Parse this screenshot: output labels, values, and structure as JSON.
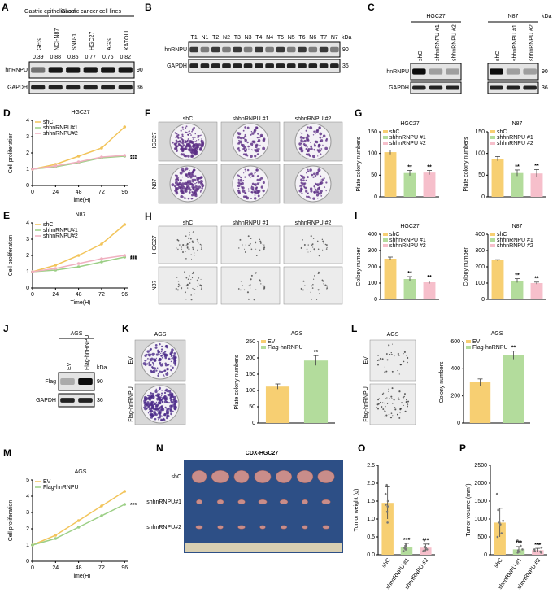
{
  "blots": [
    {
      "letter": "A",
      "groups": [
        {
          "label": "Gastric epithelial cell"
        },
        {
          "label": "Gastric cancer cell lines"
        }
      ],
      "lanes": [
        "GES",
        "NCI-N87",
        "SNU-1",
        "HGC27",
        "AGS",
        "KATOIII"
      ],
      "values": [
        0.39,
        0.88,
        0.85,
        0.77,
        0.76,
        0.82
      ],
      "rows": [
        {
          "name": "hnRNPU",
          "kda": 90
        },
        {
          "name": "GAPDH",
          "kda": 36
        }
      ]
    },
    {
      "letter": "B",
      "lanes": [
        "T1",
        "N1",
        "T2",
        "N2",
        "T3",
        "N3",
        "T4",
        "N4",
        "T5",
        "N5",
        "T6",
        "N6",
        "T7",
        "N7"
      ],
      "kda_label": "kDa",
      "rows": [
        {
          "name": "hnRNPU",
          "kda": 90
        },
        {
          "name": "GAPDH",
          "kda": 36
        }
      ]
    },
    {
      "letter": "C",
      "kda_label": "kDa",
      "groups": [
        {
          "label": "HGC27",
          "lanes": [
            "shC",
            "shhnRNPU #1",
            "shhnRNPU #2"
          ]
        },
        {
          "label": "N87",
          "lanes": [
            "shC",
            "shhnRNPU #1",
            "shhnRNPU #2"
          ]
        }
      ],
      "rows": [
        {
          "name": "hnRNPU",
          "kda": 90
        },
        {
          "name": "GAPDH",
          "kda": 36
        }
      ]
    },
    {
      "letter": "J",
      "title": "AGS",
      "kda_label": "kDa",
      "lanes": [
        "EV",
        "Flag-hnRNPU"
      ],
      "rows": [
        {
          "name": "Flag",
          "kda": 90
        },
        {
          "name": "GAPDH",
          "kda": 36
        }
      ]
    }
  ],
  "images": [
    {
      "letter": "F",
      "columns": [
        "shC",
        "shhnRNPU #1",
        "shhnRNPU #2"
      ],
      "rows": [
        "HGC27",
        "N87"
      ]
    },
    {
      "letter": "H",
      "columns": [
        "shC",
        "shhnRNPU #1",
        "shhnRNPU #2"
      ],
      "rows": [
        "HGC27",
        "N87"
      ]
    },
    {
      "letter": "K",
      "title": "AGS",
      "rows": [
        "EV",
        "Flag-hnRNPU"
      ]
    },
    {
      "letter": "L",
      "title": "AGS",
      "rows": [
        "EV",
        "Flag-hnRNPU"
      ]
    },
    {
      "letter": "N",
      "title": "CDX-HGC27",
      "rows": [
        "shC",
        "shhnRNPU#1",
        "shhnRNPU#2"
      ]
    }
  ],
  "chart_data": [
    {
      "type": "line",
      "letter": "D",
      "title": "HGC27",
      "x_label": "Time(H)",
      "y_label": "Cell proliferation",
      "x": [
        0,
        24,
        48,
        72,
        96
      ],
      "xlim": [
        0,
        100
      ],
      "xticks": [
        0,
        24,
        48,
        72,
        96
      ],
      "ylim": [
        0,
        4
      ],
      "yticks": [
        0,
        1,
        2,
        3,
        4
      ],
      "series": [
        {
          "name": "shC",
          "color": "#f2c45a",
          "values": [
            1,
            1.3,
            1.8,
            2.3,
            3.6
          ]
        },
        {
          "name": "shhnRNPU#1",
          "color": "#9ccf86",
          "values": [
            1,
            1.15,
            1.4,
            1.7,
            1.8
          ],
          "annotation": "***"
        },
        {
          "name": "shhnRNPU#2",
          "color": "#f0b0c0",
          "values": [
            1,
            1.2,
            1.45,
            1.75,
            1.85
          ],
          "annotation": "***"
        }
      ]
    },
    {
      "type": "line",
      "letter": "E",
      "title": "N87",
      "x_label": "Time(H)",
      "y_label": "Cell proliferation",
      "x": [
        0,
        24,
        48,
        72,
        96
      ],
      "xlim": [
        0,
        100
      ],
      "xticks": [
        0,
        24,
        48,
        72,
        96
      ],
      "ylim": [
        0,
        4
      ],
      "yticks": [
        0,
        1,
        2,
        3,
        4
      ],
      "series": [
        {
          "name": "shC",
          "color": "#f2c45a",
          "values": [
            1,
            1.4,
            2.0,
            2.7,
            3.9
          ]
        },
        {
          "name": "shhnRNPU#1",
          "color": "#9ccf86",
          "values": [
            1,
            1.1,
            1.3,
            1.6,
            1.9
          ],
          "annotation": "***"
        },
        {
          "name": "shhnRNPU#2",
          "color": "#f0b0c0",
          "values": [
            1,
            1.2,
            1.5,
            1.8,
            2.0
          ],
          "annotation": "***"
        }
      ]
    },
    {
      "type": "bar",
      "letter": "G",
      "title": "HGC27",
      "y_label": "Plate colony numbers",
      "categories": [
        null
      ],
      "ylim": [
        0,
        150
      ],
      "yticks": [
        0,
        50,
        100,
        150
      ],
      "series": [
        {
          "name": "shC",
          "color": "#f7cf72",
          "values": [
            103
          ],
          "errors": [
            5
          ]
        },
        {
          "name": "shhnRNPU #1",
          "color": "#b3dc9c",
          "values": [
            55
          ],
          "errors": [
            6
          ],
          "annotation": "**"
        },
        {
          "name": "shhnRNPU #2",
          "color": "#f6bfcb",
          "values": [
            56
          ],
          "errors": [
            5
          ],
          "annotation": "**"
        }
      ]
    },
    {
      "type": "bar",
      "title": "N87",
      "y_label": "Plate colony numbers",
      "categories": [
        null
      ],
      "ylim": [
        0,
        150
      ],
      "yticks": [
        0,
        50,
        100,
        150
      ],
      "series": [
        {
          "name": "shC",
          "color": "#f7cf72",
          "values": [
            88
          ],
          "errors": [
            5
          ]
        },
        {
          "name": "shhnRNPU #1",
          "color": "#b3dc9c",
          "values": [
            55
          ],
          "errors": [
            7
          ],
          "annotation": "**"
        },
        {
          "name": "shhnRNPU #2",
          "color": "#f6bfcb",
          "values": [
            54
          ],
          "errors": [
            9
          ],
          "annotation": "**"
        }
      ]
    },
    {
      "type": "bar",
      "letter": "I",
      "title": "HGC27",
      "y_label": "Colony number",
      "categories": [
        null
      ],
      "ylim": [
        0,
        400
      ],
      "yticks": [
        0,
        100,
        200,
        300,
        400
      ],
      "series": [
        {
          "name": "shC",
          "color": "#f7cf72",
          "values": [
            250
          ],
          "errors": [
            10
          ]
        },
        {
          "name": "shhnRNPU #1",
          "color": "#b3dc9c",
          "values": [
            125
          ],
          "errors": [
            15
          ],
          "annotation": "**"
        },
        {
          "name": "shhnRNPU #2",
          "color": "#f6bfcb",
          "values": [
            105
          ],
          "errors": [
            8
          ],
          "annotation": "**"
        }
      ]
    },
    {
      "type": "bar",
      "title": "N87",
      "y_label": "Colony number",
      "categories": [
        null
      ],
      "ylim": [
        0,
        400
      ],
      "yticks": [
        0,
        100,
        200,
        300,
        400
      ],
      "series": [
        {
          "name": "shC",
          "color": "#f7cf72",
          "values": [
            240
          ],
          "errors": [
            4
          ]
        },
        {
          "name": "shhnRNPU #1",
          "color": "#b3dc9c",
          "values": [
            115
          ],
          "errors": [
            12
          ],
          "annotation": "**"
        },
        {
          "name": "shhnRNPU #2",
          "color": "#f6bfcb",
          "values": [
            100
          ],
          "errors": [
            6
          ],
          "annotation": "**"
        }
      ]
    },
    {
      "type": "bar",
      "title": "AGS",
      "y_label": "Plate colony numbers",
      "categories": [
        null
      ],
      "ylim": [
        0,
        250
      ],
      "yticks": [
        0,
        50,
        100,
        150,
        200,
        250
      ],
      "series": [
        {
          "name": "EV",
          "color": "#f7cf72",
          "values": [
            112
          ],
          "errors": [
            8
          ]
        },
        {
          "name": "Flag-hnRNPU",
          "color": "#b3dc9c",
          "values": [
            192
          ],
          "errors": [
            15
          ],
          "annotation": "**"
        }
      ]
    },
    {
      "type": "bar",
      "title": "AGS",
      "y_label": "Colony numbers",
      "categories": [
        null
      ],
      "ylim": [
        0,
        600
      ],
      "yticks": [
        0,
        200,
        400,
        600
      ],
      "series": [
        {
          "name": "EV",
          "color": "#f7cf72",
          "values": [
            300
          ],
          "errors": [
            25
          ]
        },
        {
          "name": "Flag-hnRNPU",
          "color": "#b3dc9c",
          "values": [
            500
          ],
          "errors": [
            30
          ],
          "annotation": "**"
        }
      ]
    },
    {
      "type": "line",
      "letter": "M",
      "title": "AGS",
      "x_label": "Time(H)",
      "y_label": "Cell proliferation",
      "x": [
        0,
        24,
        48,
        72,
        96
      ],
      "xlim": [
        0,
        100
      ],
      "xticks": [
        0,
        24,
        48,
        72,
        96
      ],
      "ylim": [
        0,
        5
      ],
      "yticks": [
        0,
        1,
        2,
        3,
        4,
        5
      ],
      "series": [
        {
          "name": "EV",
          "color": "#f2c45a",
          "values": [
            1,
            1.6,
            2.5,
            3.4,
            4.3
          ]
        },
        {
          "name": "Flag-hnRNPU",
          "color": "#9ccf86",
          "values": [
            1,
            1.4,
            2.1,
            2.8,
            3.5
          ],
          "annotation": "***"
        }
      ]
    },
    {
      "type": "bar",
      "letter": "O",
      "y_label": "Tumor weight (g)",
      "categories": [
        "shC",
        "shhnRNPU #1",
        "shhnRNPU #2"
      ],
      "values": [
        1.45,
        0.22,
        0.2
      ],
      "errors": [
        0.45,
        0.1,
        0.1
      ],
      "colors": [
        "#f7cf72",
        "#b3dc9c",
        "#f6bfcb"
      ],
      "annotations": [
        null,
        "***",
        "***"
      ],
      "points": [
        [
          1.95,
          1.7,
          1.5,
          1.4,
          1.35,
          0.9,
          1.2
        ],
        [
          0.45,
          0.3,
          0.2,
          0.15,
          0.1,
          0.25,
          0.18
        ],
        [
          0.4,
          0.3,
          0.2,
          0.12,
          0.1,
          0.22,
          0.15
        ]
      ],
      "ylim": [
        0,
        2.5
      ],
      "yticks": [
        {
          "value": 0,
          "label": "0.0"
        },
        {
          "value": 0.5,
          "label": "0.5"
        },
        {
          "value": 1,
          "label": "1.0"
        },
        {
          "value": 1.5,
          "label": "1.5"
        },
        {
          "value": 2,
          "label": "2.0"
        },
        {
          "value": 2.5,
          "label": "2.5"
        }
      ]
    },
    {
      "type": "bar",
      "letter": "P",
      "y_label": "Tumor volume (mm³)",
      "categories": [
        "shC",
        "shhnRNPU #1",
        "shhnRNPU #2"
      ],
      "values": [
        900,
        150,
        130
      ],
      "errors": [
        400,
        80,
        50
      ],
      "colors": [
        "#f7cf72",
        "#b3dc9c",
        "#f6bfcb"
      ],
      "annotations": [
        null,
        "***",
        "***"
      ],
      "points": [
        [
          1700,
          1250,
          950,
          900,
          850,
          600,
          500
        ],
        [
          400,
          250,
          150,
          100,
          80,
          120,
          60
        ],
        [
          300,
          200,
          150,
          100,
          80,
          60,
          90
        ]
      ],
      "ylim": [
        0,
        2500
      ],
      "yticks": [
        0,
        500,
        1000,
        1500,
        2000,
        2500
      ]
    }
  ]
}
